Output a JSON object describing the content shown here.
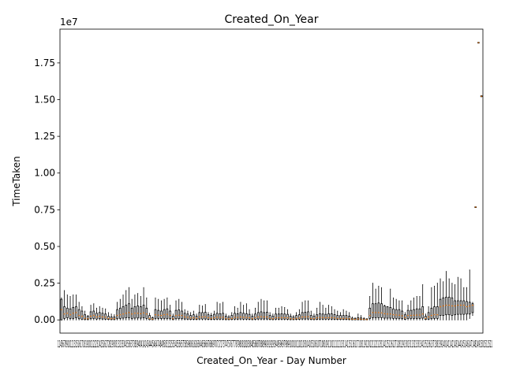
{
  "chart_data": {
    "type": "box",
    "title": "Created_On_Year",
    "xlabel": "Created_On_Year - Day Number",
    "ylabel": "TimeTaken",
    "y_offset_text": "1e7",
    "y_scale": 10000000,
    "ylim": [
      -900000,
      19800000
    ],
    "y_ticks": [
      0,
      2500000,
      5000000,
      7500000,
      10000000,
      12500000,
      15000000,
      17500000
    ],
    "y_tick_labels": [
      "0.00",
      "0.25",
      "0.50",
      "0.75",
      "1.00",
      "1.25",
      "1.50",
      "1.75"
    ],
    "x_tick_labels_visible": "12456789101213151617181920212223242526272829303132333435363738394041424344454647484950515253545556575859606162636465666768697071727374757677787980818283848586878889909192939495969798991001011021031041051061071081091101111121131141151161171181191201211221231241251261271281291301311321331341351361371381391401411421431441451461471481491501511521",
    "box_color": "#000000",
    "median_color": "#ff7f0e",
    "grid": false,
    "boxes": [
      {
        "q1": 0,
        "med": 700000,
        "q3": 1400000,
        "whislo": 0,
        "whishi": 1500000
      },
      {
        "q1": 100000,
        "med": 400000,
        "q3": 900000,
        "whislo": 0,
        "whishi": 2000000
      },
      {
        "q1": 150000,
        "med": 450000,
        "q3": 800000,
        "whislo": 0,
        "whishi": 1700000
      },
      {
        "q1": 100000,
        "med": 350000,
        "q3": 750000,
        "whislo": 0,
        "whishi": 1600000
      },
      {
        "q1": 100000,
        "med": 450000,
        "q3": 850000,
        "whislo": 0,
        "whishi": 1700000
      },
      {
        "q1": 150000,
        "med": 500000,
        "q3": 900000,
        "whislo": 0,
        "whishi": 1700000
      },
      {
        "q1": 80000,
        "med": 300000,
        "q3": 700000,
        "whislo": 0,
        "whishi": 1200000
      },
      {
        "q1": 50000,
        "med": 250000,
        "q3": 600000,
        "whislo": 0,
        "whishi": 900000
      },
      {
        "q1": 20000,
        "med": 100000,
        "q3": 350000,
        "whislo": 0,
        "whishi": 600000
      },
      {
        "q1": 20000,
        "med": 80000,
        "q3": 250000,
        "whislo": 0,
        "whishi": 300000
      },
      {
        "q1": 80000,
        "med": 250000,
        "q3": 550000,
        "whislo": 0,
        "whishi": 1000000
      },
      {
        "q1": 100000,
        "med": 300000,
        "q3": 600000,
        "whislo": 0,
        "whishi": 1100000
      },
      {
        "q1": 60000,
        "med": 200000,
        "q3": 450000,
        "whislo": 0,
        "whishi": 800000
      },
      {
        "q1": 80000,
        "med": 250000,
        "q3": 500000,
        "whislo": 0,
        "whishi": 900000
      },
      {
        "q1": 60000,
        "med": 200000,
        "q3": 450000,
        "whislo": 0,
        "whishi": 800000
      },
      {
        "q1": 50000,
        "med": 180000,
        "q3": 400000,
        "whislo": 0,
        "whishi": 750000
      },
      {
        "q1": 30000,
        "med": 100000,
        "q3": 250000,
        "whislo": 0,
        "whishi": 500000
      },
      {
        "q1": 20000,
        "med": 80000,
        "q3": 200000,
        "whislo": 0,
        "whishi": 400000
      },
      {
        "q1": 20000,
        "med": 80000,
        "q3": 200000,
        "whislo": 0,
        "whishi": 350000
      },
      {
        "q1": 80000,
        "med": 300000,
        "q3": 700000,
        "whislo": 0,
        "whishi": 1200000
      },
      {
        "q1": 100000,
        "med": 350000,
        "q3": 800000,
        "whislo": 0,
        "whishi": 1400000
      },
      {
        "q1": 120000,
        "med": 400000,
        "q3": 900000,
        "whislo": 0,
        "whishi": 1700000
      },
      {
        "q1": 150000,
        "med": 450000,
        "q3": 1000000,
        "whislo": 0,
        "whishi": 2000000
      },
      {
        "q1": 150000,
        "med": 500000,
        "q3": 1100000,
        "whislo": 0,
        "whishi": 2200000
      },
      {
        "q1": 100000,
        "med": 400000,
        "q3": 800000,
        "whislo": 0,
        "whishi": 1400000
      },
      {
        "q1": 120000,
        "med": 450000,
        "q3": 900000,
        "whislo": 0,
        "whishi": 1700000
      },
      {
        "q1": 130000,
        "med": 450000,
        "q3": 950000,
        "whislo": 0,
        "whishi": 1800000
      },
      {
        "q1": 120000,
        "med": 420000,
        "q3": 900000,
        "whislo": 0,
        "whishi": 1600000
      },
      {
        "q1": 140000,
        "med": 480000,
        "q3": 1000000,
        "whislo": 0,
        "whishi": 2200000
      },
      {
        "q1": 100000,
        "med": 400000,
        "q3": 800000,
        "whislo": 0,
        "whishi": 1500000
      },
      {
        "q1": 20000,
        "med": 100000,
        "q3": 300000,
        "whislo": 0,
        "whishi": 450000
      },
      {
        "q1": 10000,
        "med": 50000,
        "q3": 150000,
        "whislo": 0,
        "whishi": 200000
      },
      {
        "q1": 100000,
        "med": 350000,
        "q3": 700000,
        "whislo": 0,
        "whishi": 1500000
      },
      {
        "q1": 100000,
        "med": 320000,
        "q3": 650000,
        "whislo": 0,
        "whishi": 1400000
      },
      {
        "q1": 90000,
        "med": 300000,
        "q3": 600000,
        "whislo": 0,
        "whishi": 1300000
      },
      {
        "q1": 100000,
        "med": 350000,
        "q3": 700000,
        "whislo": 0,
        "whishi": 1400000
      },
      {
        "q1": 100000,
        "med": 380000,
        "q3": 750000,
        "whislo": 0,
        "whishi": 1500000
      },
      {
        "q1": 80000,
        "med": 300000,
        "q3": 600000,
        "whislo": 0,
        "whishi": 1000000
      },
      {
        "q1": 20000,
        "med": 80000,
        "q3": 250000,
        "whislo": 0,
        "whishi": 400000
      },
      {
        "q1": 80000,
        "med": 300000,
        "q3": 650000,
        "whislo": 0,
        "whishi": 1300000
      },
      {
        "q1": 90000,
        "med": 320000,
        "q3": 680000,
        "whislo": 0,
        "whishi": 1400000
      },
      {
        "q1": 80000,
        "med": 300000,
        "q3": 600000,
        "whislo": 0,
        "whishi": 1200000
      },
      {
        "q1": 60000,
        "med": 200000,
        "q3": 450000,
        "whislo": 0,
        "whishi": 700000
      },
      {
        "q1": 50000,
        "med": 180000,
        "q3": 400000,
        "whislo": 0,
        "whishi": 600000
      },
      {
        "q1": 30000,
        "med": 120000,
        "q3": 300000,
        "whislo": 0,
        "whishi": 500000
      },
      {
        "q1": 40000,
        "med": 150000,
        "q3": 350000,
        "whislo": 0,
        "whishi": 600000
      },
      {
        "q1": 30000,
        "med": 100000,
        "q3": 250000,
        "whislo": 0,
        "whishi": 400000
      },
      {
        "q1": 60000,
        "med": 200000,
        "q3": 500000,
        "whislo": 0,
        "whishi": 1000000
      },
      {
        "q1": 60000,
        "med": 200000,
        "q3": 500000,
        "whislo": 0,
        "whishi": 950000
      },
      {
        "q1": 60000,
        "med": 220000,
        "q3": 520000,
        "whislo": 0,
        "whishi": 1050000
      },
      {
        "q1": 40000,
        "med": 150000,
        "q3": 350000,
        "whislo": 0,
        "whishi": 500000
      },
      {
        "q1": 30000,
        "med": 100000,
        "q3": 300000,
        "whislo": 0,
        "whishi": 450000
      },
      {
        "q1": 40000,
        "med": 150000,
        "q3": 380000,
        "whislo": 0,
        "whishi": 600000
      },
      {
        "q1": 50000,
        "med": 180000,
        "q3": 450000,
        "whislo": 0,
        "whishi": 1200000
      },
      {
        "q1": 50000,
        "med": 170000,
        "q3": 420000,
        "whislo": 0,
        "whishi": 1100000
      },
      {
        "q1": 50000,
        "med": 180000,
        "q3": 450000,
        "whislo": 0,
        "whishi": 1200000
      },
      {
        "q1": 20000,
        "med": 80000,
        "q3": 250000,
        "whislo": 0,
        "whishi": 400000
      },
      {
        "q1": 20000,
        "med": 70000,
        "q3": 200000,
        "whislo": 0,
        "whishi": 300000
      },
      {
        "q1": 30000,
        "med": 100000,
        "q3": 300000,
        "whislo": 0,
        "whishi": 500000
      },
      {
        "q1": 50000,
        "med": 170000,
        "q3": 450000,
        "whislo": 0,
        "whishi": 900000
      },
      {
        "q1": 50000,
        "med": 170000,
        "q3": 420000,
        "whislo": 0,
        "whishi": 800000
      },
      {
        "q1": 60000,
        "med": 200000,
        "q3": 500000,
        "whislo": 0,
        "whishi": 1200000
      },
      {
        "q1": 50000,
        "med": 180000,
        "q3": 450000,
        "whislo": 0,
        "whishi": 1000000
      },
      {
        "q1": 50000,
        "med": 170000,
        "q3": 420000,
        "whislo": 0,
        "whishi": 1100000
      },
      {
        "q1": 40000,
        "med": 150000,
        "q3": 380000,
        "whislo": 0,
        "whishi": 700000
      },
      {
        "q1": 20000,
        "med": 80000,
        "q3": 250000,
        "whislo": 0,
        "whishi": 400000
      },
      {
        "q1": 40000,
        "med": 150000,
        "q3": 400000,
        "whislo": 0,
        "whishi": 800000
      },
      {
        "q1": 60000,
        "med": 200000,
        "q3": 500000,
        "whislo": 0,
        "whishi": 1200000
      },
      {
        "q1": 60000,
        "med": 220000,
        "q3": 550000,
        "whislo": 0,
        "whishi": 1400000
      },
      {
        "q1": 60000,
        "med": 200000,
        "q3": 500000,
        "whislo": 0,
        "whishi": 1300000
      },
      {
        "q1": 60000,
        "med": 200000,
        "q3": 520000,
        "whislo": 0,
        "whishi": 1300000
      },
      {
        "q1": 30000,
        "med": 100000,
        "q3": 300000,
        "whislo": 0,
        "whishi": 500000
      },
      {
        "q1": 20000,
        "med": 80000,
        "q3": 250000,
        "whislo": 0,
        "whishi": 400000
      },
      {
        "q1": 50000,
        "med": 150000,
        "q3": 400000,
        "whislo": 0,
        "whishi": 800000
      },
      {
        "q1": 50000,
        "med": 150000,
        "q3": 400000,
        "whislo": 0,
        "whishi": 800000
      },
      {
        "q1": 50000,
        "med": 160000,
        "q3": 420000,
        "whislo": 0,
        "whishi": 900000
      },
      {
        "q1": 50000,
        "med": 150000,
        "q3": 400000,
        "whislo": 0,
        "whishi": 850000
      },
      {
        "q1": 40000,
        "med": 140000,
        "q3": 380000,
        "whislo": 0,
        "whishi": 700000
      },
      {
        "q1": 20000,
        "med": 80000,
        "q3": 250000,
        "whislo": 0,
        "whishi": 400000
      },
      {
        "q1": 20000,
        "med": 70000,
        "q3": 200000,
        "whislo": 0,
        "whishi": 300000
      },
      {
        "q1": 30000,
        "med": 100000,
        "q3": 300000,
        "whislo": 0,
        "whishi": 500000
      },
      {
        "q1": 40000,
        "med": 130000,
        "q3": 350000,
        "whislo": 0,
        "whishi": 700000
      },
      {
        "q1": 60000,
        "med": 200000,
        "q3": 500000,
        "whislo": 0,
        "whishi": 1200000
      },
      {
        "q1": 60000,
        "med": 200000,
        "q3": 520000,
        "whislo": 0,
        "whishi": 1300000
      },
      {
        "q1": 60000,
        "med": 220000,
        "q3": 550000,
        "whislo": 0,
        "whishi": 1300000
      },
      {
        "q1": 30000,
        "med": 100000,
        "q3": 300000,
        "whislo": 0,
        "whishi": 600000
      },
      {
        "q1": 20000,
        "med": 80000,
        "q3": 250000,
        "whislo": 0,
        "whishi": 400000
      },
      {
        "q1": 40000,
        "med": 140000,
        "q3": 350000,
        "whislo": 0,
        "whishi": 800000
      },
      {
        "q1": 50000,
        "med": 170000,
        "q3": 420000,
        "whislo": 0,
        "whishi": 1200000
      },
      {
        "q1": 50000,
        "med": 160000,
        "q3": 400000,
        "whislo": 0,
        "whishi": 1000000
      },
      {
        "q1": 50000,
        "med": 150000,
        "q3": 380000,
        "whislo": 0,
        "whishi": 800000
      },
      {
        "q1": 50000,
        "med": 160000,
        "q3": 420000,
        "whislo": 0,
        "whishi": 1000000
      },
      {
        "q1": 50000,
        "med": 160000,
        "q3": 420000,
        "whislo": 0,
        "whishi": 900000
      },
      {
        "q1": 40000,
        "med": 140000,
        "q3": 360000,
        "whislo": 0,
        "whishi": 700000
      },
      {
        "q1": 30000,
        "med": 100000,
        "q3": 300000,
        "whislo": 0,
        "whishi": 600000
      },
      {
        "q1": 30000,
        "med": 100000,
        "q3": 300000,
        "whislo": 0,
        "whishi": 500000
      },
      {
        "q1": 30000,
        "med": 100000,
        "q3": 300000,
        "whislo": 0,
        "whishi": 700000
      },
      {
        "q1": 30000,
        "med": 100000,
        "q3": 300000,
        "whislo": 0,
        "whishi": 600000
      },
      {
        "q1": 20000,
        "med": 80000,
        "q3": 250000,
        "whislo": 0,
        "whishi": 500000
      },
      {
        "q1": 10000,
        "med": 50000,
        "q3": 120000,
        "whislo": 0,
        "whishi": 200000
      },
      {
        "q1": 10000,
        "med": 40000,
        "q3": 100000,
        "whislo": 0,
        "whishi": 150000
      },
      {
        "q1": 10000,
        "med": 60000,
        "q3": 150000,
        "whislo": 0,
        "whishi": 400000
      },
      {
        "q1": 10000,
        "med": 50000,
        "q3": 130000,
        "whislo": 0,
        "whishi": 300000
      },
      {
        "q1": 5000,
        "med": 30000,
        "q3": 80000,
        "whislo": 0,
        "whishi": 150000
      },
      {
        "q1": 5000,
        "med": 20000,
        "q3": 60000,
        "whislo": 0,
        "whishi": 100000
      },
      {
        "q1": 100000,
        "med": 300000,
        "q3": 800000,
        "whislo": 0,
        "whishi": 1600000
      },
      {
        "q1": 150000,
        "med": 500000,
        "q3": 1100000,
        "whislo": 0,
        "whishi": 2500000
      },
      {
        "q1": 150000,
        "med": 500000,
        "q3": 1100000,
        "whislo": 0,
        "whishi": 2100000
      },
      {
        "q1": 150000,
        "med": 500000,
        "q3": 1150000,
        "whislo": 0,
        "whishi": 2300000
      },
      {
        "q1": 150000,
        "med": 480000,
        "q3": 1100000,
        "whislo": 0,
        "whishi": 2200000
      },
      {
        "q1": 120000,
        "med": 420000,
        "q3": 950000,
        "whislo": 0,
        "whishi": 1000000
      },
      {
        "q1": 120000,
        "med": 400000,
        "q3": 900000,
        "whislo": 0,
        "whishi": 900000
      },
      {
        "q1": 120000,
        "med": 400000,
        "q3": 850000,
        "whislo": 0,
        "whishi": 2100000
      },
      {
        "q1": 100000,
        "med": 350000,
        "q3": 750000,
        "whislo": 0,
        "whishi": 1500000
      },
      {
        "q1": 100000,
        "med": 330000,
        "q3": 700000,
        "whislo": 0,
        "whishi": 1400000
      },
      {
        "q1": 100000,
        "med": 320000,
        "q3": 700000,
        "whislo": 0,
        "whishi": 1300000
      },
      {
        "q1": 80000,
        "med": 280000,
        "q3": 600000,
        "whislo": 0,
        "whishi": 1300000
      },
      {
        "q1": 40000,
        "med": 150000,
        "q3": 350000,
        "whislo": 0,
        "whishi": 500000
      },
      {
        "q1": 100000,
        "med": 300000,
        "q3": 650000,
        "whislo": 0,
        "whishi": 1000000
      },
      {
        "q1": 100000,
        "med": 300000,
        "q3": 650000,
        "whislo": 0,
        "whishi": 1300000
      },
      {
        "q1": 100000,
        "med": 320000,
        "q3": 700000,
        "whislo": 0,
        "whishi": 1500000
      },
      {
        "q1": 100000,
        "med": 330000,
        "q3": 750000,
        "whislo": 0,
        "whishi": 1600000
      },
      {
        "q1": 100000,
        "med": 330000,
        "q3": 750000,
        "whislo": 0,
        "whishi": 1600000
      },
      {
        "q1": 120000,
        "med": 400000,
        "q3": 900000,
        "whislo": 0,
        "whishi": 2400000
      },
      {
        "q1": 30000,
        "med": 100000,
        "q3": 250000,
        "whislo": 0,
        "whishi": 400000
      },
      {
        "q1": 50000,
        "med": 200000,
        "q3": 500000,
        "whislo": 0,
        "whishi": 900000
      },
      {
        "q1": 80000,
        "med": 300000,
        "q3": 800000,
        "whislo": 0,
        "whishi": 2200000
      },
      {
        "q1": 100000,
        "med": 350000,
        "q3": 900000,
        "whislo": 0,
        "whishi": 2300000
      },
      {
        "q1": 100000,
        "med": 350000,
        "q3": 900000,
        "whislo": 0,
        "whishi": 2500000
      },
      {
        "q1": 300000,
        "med": 900000,
        "q3": 1400000,
        "whislo": 0,
        "whishi": 2800000
      },
      {
        "q1": 300000,
        "med": 950000,
        "q3": 1500000,
        "whislo": 0,
        "whishi": 2600000
      },
      {
        "q1": 350000,
        "med": 1000000,
        "q3": 1550000,
        "whislo": 0,
        "whishi": 3300000
      },
      {
        "q1": 350000,
        "med": 1000000,
        "q3": 1550000,
        "whislo": 0,
        "whishi": 2800000
      },
      {
        "q1": 300000,
        "med": 950000,
        "q3": 1500000,
        "whislo": 0,
        "whishi": 2500000
      },
      {
        "q1": 350000,
        "med": 950000,
        "q3": 1300000,
        "whislo": 0,
        "whishi": 2400000
      },
      {
        "q1": 380000,
        "med": 1000000,
        "q3": 1300000,
        "whislo": 0,
        "whishi": 2900000
      },
      {
        "q1": 380000,
        "med": 1000000,
        "q3": 1300000,
        "whislo": 0,
        "whishi": 2800000
      },
      {
        "q1": 380000,
        "med": 1000000,
        "q3": 1300000,
        "whislo": 0,
        "whishi": 2200000
      },
      {
        "q1": 400000,
        "med": 900000,
        "q3": 1250000,
        "whislo": 0,
        "whishi": 2200000
      },
      {
        "q1": 400000,
        "med": 950000,
        "q3": 1200000,
        "whislo": 100000,
        "whishi": 3400000
      },
      {
        "q1": 500000,
        "med": 1000000,
        "q3": 1100000,
        "whislo": 300000,
        "whishi": 1200000
      },
      {
        "q1": 7650000,
        "med": 7680000,
        "q3": 7700000,
        "whislo": 7650000,
        "whishi": 7700000
      },
      {
        "q1": 18850000,
        "med": 18880000,
        "q3": 18900000,
        "whislo": 18850000,
        "whishi": 18900000
      },
      {
        "q1": 15200000,
        "med": 15230000,
        "q3": 15260000,
        "whislo": 15200000,
        "whishi": 15260000
      }
    ]
  }
}
